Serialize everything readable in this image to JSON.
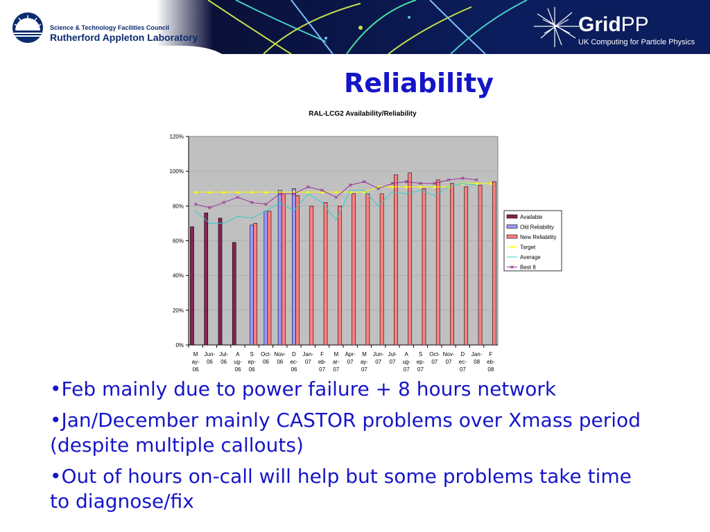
{
  "header": {
    "stfc_council": "Science & Technology Facilities Council",
    "stfc_lab": "Rutherford Appleton Laboratory",
    "gridpp_word_bold": "Grid",
    "gridpp_word_light": "PP",
    "gridpp_sub": "UK Computing for Particle Physics"
  },
  "slide": {
    "title": "Reliability"
  },
  "colors": {
    "title_blue": "#1515c8",
    "header_navy": "#0b1d5c",
    "plot_bg": "#c0c0c0",
    "available": "#8b2252",
    "old_reliability": "#9999ff",
    "new_reliability": "#ff8080",
    "target": "#ffff00",
    "average": "#33cccc",
    "best8": "#993399"
  },
  "chart_data": {
    "type": "bar",
    "title": "RAL-LCG2 Availability/Reliability",
    "xlabel": "",
    "ylabel": "",
    "ylim": [
      0,
      120
    ],
    "yticks": [
      "0%",
      "20%",
      "40%",
      "60%",
      "80%",
      "100%",
      "120%"
    ],
    "categories": [
      [
        "M",
        "ay-",
        "06"
      ],
      [
        "Jun-",
        "06"
      ],
      [
        "Jul-",
        "06"
      ],
      [
        "A",
        "ug-",
        "06"
      ],
      [
        "S",
        "ep-",
        "06"
      ],
      [
        "Oct-",
        "06"
      ],
      [
        "Nov-",
        "06"
      ],
      [
        "D",
        "ec-",
        "06"
      ],
      [
        "Jan-",
        "07"
      ],
      [
        "F",
        "eb-",
        "07"
      ],
      [
        "M",
        "ar-",
        "07"
      ],
      [
        "Apr-",
        "07"
      ],
      [
        "M",
        "ay-",
        "07"
      ],
      [
        "Jun-",
        "07"
      ],
      [
        "Jul-",
        "07"
      ],
      [
        "A",
        "ug-",
        "07"
      ],
      [
        "S",
        "ep-",
        "07"
      ],
      [
        "Oct-",
        "07"
      ],
      [
        "Nov-",
        "07"
      ],
      [
        "D",
        "ec-",
        "07"
      ],
      [
        "Jan-",
        "08"
      ],
      [
        "F",
        "eb-",
        "08"
      ]
    ],
    "legend_position": "right",
    "series": [
      {
        "name": "Available",
        "kind": "bar",
        "values": [
          68,
          76,
          73,
          59,
          null,
          null,
          null,
          null,
          null,
          null,
          null,
          null,
          null,
          null,
          null,
          null,
          null,
          null,
          null,
          null,
          null,
          null
        ]
      },
      {
        "name": "Old Reliability",
        "kind": "bar",
        "values": [
          null,
          null,
          null,
          null,
          69,
          77,
          89,
          90,
          null,
          null,
          null,
          null,
          null,
          null,
          null,
          null,
          null,
          null,
          null,
          null,
          null,
          null
        ]
      },
      {
        "name": "New Reliability",
        "kind": "bar",
        "values": [
          null,
          null,
          null,
          null,
          70,
          77,
          87,
          86,
          80,
          82,
          80,
          87,
          87,
          87,
          98,
          99,
          90,
          95,
          93,
          91,
          92,
          94
        ]
      },
      {
        "name": "Target",
        "kind": "line",
        "values": [
          88,
          88,
          88,
          88,
          88,
          88,
          88,
          88,
          88,
          88,
          88,
          88,
          88,
          91,
          91,
          91,
          91,
          91,
          91,
          93,
          93,
          93
        ]
      },
      {
        "name": "Average",
        "kind": "line",
        "values": [
          77,
          70,
          70,
          74,
          73,
          77,
          82,
          77,
          87,
          82,
          72,
          89,
          89,
          80,
          88,
          87,
          89,
          86,
          91,
          93,
          92,
          null
        ]
      },
      {
        "name": "Best 8",
        "kind": "line",
        "values": [
          81,
          79,
          82,
          85,
          82,
          81,
          87,
          87,
          91,
          89,
          85,
          92,
          94,
          90,
          93,
          94,
          93,
          93,
          95,
          96,
          95,
          null
        ]
      }
    ]
  },
  "bullets": [
    "•Feb mainly due to power failure + 8 hours network",
    "•Jan/December mainly CASTOR problems over Xmass period (despite multiple callouts)",
    "•Out of hours on-call will help but some problems take time to diagnose/fix"
  ]
}
